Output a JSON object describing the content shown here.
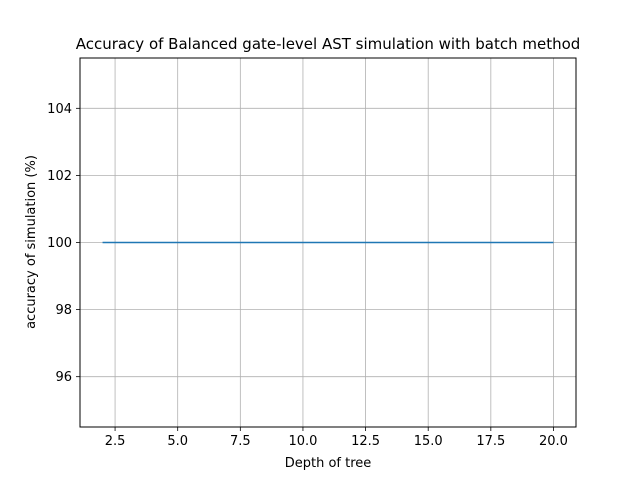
{
  "chart_data": {
    "type": "line",
    "title": "Accuracy of Balanced gate-level AST simulation with batch method",
    "xlabel": "Depth of tree",
    "ylabel": "accuracy of simulation (%)",
    "xlim": [
      1.1,
      20.9
    ],
    "ylim": [
      94.5,
      105.5
    ],
    "xticks": [
      2.5,
      5.0,
      7.5,
      10.0,
      12.5,
      15.0,
      17.5,
      20.0
    ],
    "xtick_labels": [
      "2.5",
      "5.0",
      "7.5",
      "10.0",
      "12.5",
      "15.0",
      "17.5",
      "20.0"
    ],
    "yticks": [
      96,
      98,
      100,
      102,
      104
    ],
    "ytick_labels": [
      "96",
      "98",
      "100",
      "102",
      "104"
    ],
    "grid": true,
    "series": [
      {
        "color": "#1f77b4",
        "x": [
          2,
          3,
          4,
          5,
          6,
          7,
          8,
          9,
          10,
          11,
          12,
          13,
          14,
          15,
          16,
          17,
          18,
          19,
          20
        ],
        "y": [
          100,
          100,
          100,
          100,
          100,
          100,
          100,
          100,
          100,
          100,
          100,
          100,
          100,
          100,
          100,
          100,
          100,
          100,
          100
        ]
      }
    ]
  }
}
